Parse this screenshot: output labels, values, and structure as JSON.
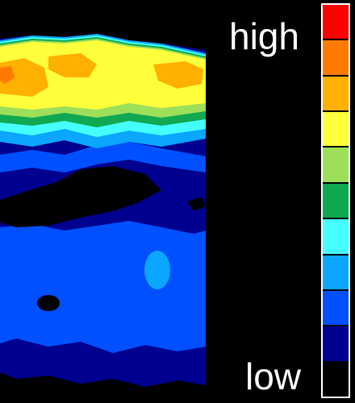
{
  "legend": {
    "high_label": "high",
    "low_label": "low",
    "colors": [
      "#ff0000",
      "#ff7a00",
      "#ffb000",
      "#ffff3c",
      "#9edf5a",
      "#10a850",
      "#45ffff",
      "#0aa6ff",
      "#0050ff",
      "#000090",
      "#000000"
    ]
  },
  "heatmap": {
    "colormap": [
      "#000000",
      "#000090",
      "#0050ff",
      "#0aa6ff",
      "#45ffff",
      "#10a850",
      "#9edf5a",
      "#ffff3c",
      "#ffb000",
      "#ff7a00",
      "#ff0000"
    ]
  }
}
